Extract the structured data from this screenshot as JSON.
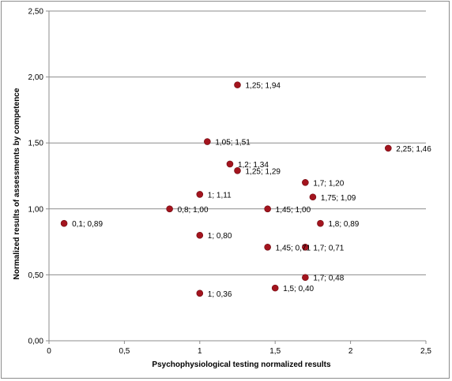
{
  "chart_data": {
    "type": "scatter",
    "xlabel": "Psychophysiological  testing normalized results",
    "ylabel": "Normalized results of assessments  by competence",
    "xlim": [
      0,
      2.5
    ],
    "ylim": [
      0,
      2.5
    ],
    "xticks": [
      "0",
      "0,5",
      "1",
      "1,5",
      "2",
      "2,5"
    ],
    "yticks": [
      "0,00",
      "0,50",
      "1,00",
      "1,50",
      "2,00",
      "2,50"
    ],
    "grid": "horizontal",
    "marker_color": "#a3141e",
    "points": [
      {
        "x": 1.25,
        "y": 1.94,
        "label": "1,25; 1,94"
      },
      {
        "x": 1.05,
        "y": 1.51,
        "label": "1,05; 1,51"
      },
      {
        "x": 2.25,
        "y": 1.46,
        "label": "2,25; 1,46"
      },
      {
        "x": 1.2,
        "y": 1.34,
        "label": "1,2; 1,34"
      },
      {
        "x": 1.25,
        "y": 1.29,
        "label": "1,25; 1,29"
      },
      {
        "x": 1.7,
        "y": 1.2,
        "label": "1,7; 1,20"
      },
      {
        "x": 1.0,
        "y": 1.11,
        "label": "1; 1,11"
      },
      {
        "x": 1.75,
        "y": 1.09,
        "label": "1,75; 1,09"
      },
      {
        "x": 0.8,
        "y": 1.0,
        "label": "0,8; 1,00"
      },
      {
        "x": 1.45,
        "y": 1.0,
        "label": "1,45; 1,00"
      },
      {
        "x": 0.1,
        "y": 0.89,
        "label": "0,1; 0,89"
      },
      {
        "x": 1.8,
        "y": 0.89,
        "label": "1,8; 0,89"
      },
      {
        "x": 1.0,
        "y": 0.8,
        "label": "1; 0,80"
      },
      {
        "x": 1.45,
        "y": 0.71,
        "label": "1,45; 0,71"
      },
      {
        "x": 1.7,
        "y": 0.71,
        "label": "1,7; 0,71"
      },
      {
        "x": 1.7,
        "y": 0.48,
        "label": "1,7; 0,48"
      },
      {
        "x": 1.5,
        "y": 0.4,
        "label": "1,5; 0,40"
      },
      {
        "x": 1.0,
        "y": 0.36,
        "label": "1; 0,36"
      }
    ]
  }
}
